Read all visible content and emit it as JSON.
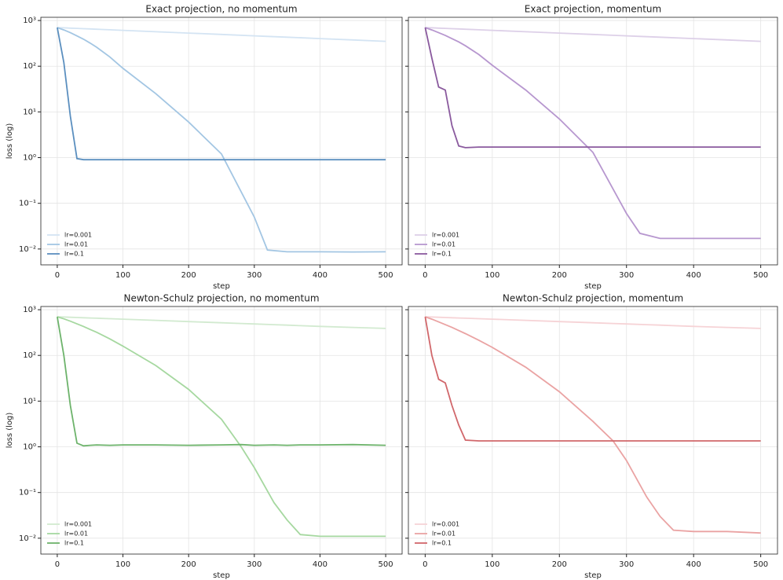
{
  "chart_data": [
    {
      "type": "line",
      "title": "Exact projection, no momentum",
      "xlabel": "step",
      "ylabel": "loss (log)",
      "yscale": "log",
      "grid": true,
      "legend": "lower left",
      "x": [
        0,
        10,
        20,
        30,
        40,
        50,
        60,
        80,
        100,
        150,
        200,
        250,
        300,
        320,
        350,
        400,
        450,
        500
      ],
      "xlim": [
        -25,
        525
      ],
      "xticks": [
        0,
        100,
        200,
        300,
        400,
        500
      ],
      "ylim": [
        0.0045,
        1175
      ],
      "yticks": [
        {
          "value": 0.01,
          "label": "10⁻²"
        },
        {
          "value": 0.1,
          "label": "10⁻¹"
        },
        {
          "value": 1,
          "label": "10⁰"
        },
        {
          "value": 10,
          "label": "10¹"
        },
        {
          "value": 100,
          "label": "10²"
        },
        {
          "value": 1000,
          "label": "10³"
        }
      ],
      "series": [
        {
          "name": "lr=0.001",
          "color": "#d4e4f3",
          "values": [
            700,
            690,
            681,
            672,
            662,
            653,
            644,
            627,
            609,
            568,
            530,
            495,
            462,
            449,
            431,
            402,
            375,
            350
          ]
        },
        {
          "name": "lr=0.01",
          "color": "#a3c6e3",
          "values": [
            700,
            620,
            540,
            460,
            390,
            320,
            260,
            160,
            90,
            25,
            6,
            1.2,
            0.05,
            0.0095,
            0.0087,
            0.0087,
            0.0086,
            0.0087
          ]
        },
        {
          "name": "lr=0.1",
          "color": "#5b8fbf",
          "values": [
            700,
            120,
            8,
            0.95,
            0.9,
            0.9,
            0.9,
            0.9,
            0.9,
            0.9,
            0.9,
            0.9,
            0.9,
            0.9,
            0.9,
            0.9,
            0.9,
            0.9
          ]
        }
      ]
    },
    {
      "type": "line",
      "title": "Exact projection, momentum",
      "xlabel": "step",
      "yscale": "log",
      "grid": true,
      "legend": "lower left",
      "x": [
        0,
        10,
        20,
        30,
        40,
        50,
        60,
        80,
        100,
        150,
        200,
        250,
        300,
        320,
        350,
        400,
        450,
        500
      ],
      "xlim": [
        -25,
        525
      ],
      "xticks": [
        0,
        100,
        200,
        300,
        400,
        500
      ],
      "ylim": [
        0.0045,
        1175
      ],
      "yticks": [
        0.01,
        0.1,
        1,
        10,
        100,
        1000
      ],
      "series": [
        {
          "name": "lr=0.001",
          "color": "#ddd0e8",
          "values": [
            700,
            690,
            681,
            672,
            662,
            653,
            644,
            627,
            609,
            568,
            530,
            495,
            462,
            449,
            431,
            402,
            375,
            350
          ]
        },
        {
          "name": "lr=0.01",
          "color": "#b797cf",
          "values": [
            700,
            620,
            540,
            470,
            400,
            340,
            280,
            180,
            105,
            30,
            7,
            1.3,
            0.06,
            0.022,
            0.017,
            0.017,
            0.017,
            0.017
          ]
        },
        {
          "name": "lr=0.1",
          "color": "#8a5a9e",
          "values": [
            700,
            150,
            35,
            30,
            5,
            1.8,
            1.65,
            1.7,
            1.7,
            1.7,
            1.7,
            1.7,
            1.7,
            1.7,
            1.7,
            1.7,
            1.7,
            1.7
          ]
        }
      ]
    },
    {
      "type": "line",
      "title": "Newton-Schulz projection, no momentum",
      "xlabel": "step",
      "ylabel": "loss (log)",
      "yscale": "log",
      "grid": true,
      "legend": "lower left",
      "x": [
        0,
        10,
        20,
        30,
        40,
        50,
        60,
        80,
        100,
        150,
        200,
        250,
        280,
        300,
        330,
        350,
        370,
        400,
        450,
        500
      ],
      "xlim": [
        -25,
        525
      ],
      "xticks": [
        0,
        100,
        200,
        300,
        400,
        500
      ],
      "ylim": [
        0.0045,
        1175
      ],
      "yticks": [
        {
          "value": 0.01,
          "label": "10⁻²"
        },
        {
          "value": 0.1,
          "label": "10⁻¹"
        },
        {
          "value": 1,
          "label": "10⁰"
        },
        {
          "value": 10,
          "label": "10¹"
        },
        {
          "value": 100,
          "label": "10²"
        },
        {
          "value": 1000,
          "label": "10³"
        }
      ],
      "series": [
        {
          "name": "lr=0.001",
          "color": "#d2ead0",
          "values": [
            700,
            692,
            684,
            676,
            668,
            660,
            652,
            637,
            622,
            585,
            550,
            518,
            499,
            487,
            470,
            459,
            448,
            432,
            410,
            390
          ]
        },
        {
          "name": "lr=0.01",
          "color": "#a6d8a0",
          "values": [
            700,
            630,
            560,
            490,
            430,
            370,
            320,
            230,
            160,
            60,
            18,
            4,
            1,
            0.35,
            0.06,
            0.025,
            0.012,
            0.011,
            0.011,
            0.011
          ]
        },
        {
          "name": "lr=0.1",
          "color": "#6db36b",
          "values": [
            700,
            100,
            8,
            1.2,
            1.05,
            1.08,
            1.1,
            1.08,
            1.1,
            1.1,
            1.08,
            1.1,
            1.12,
            1.08,
            1.1,
            1.08,
            1.1,
            1.1,
            1.12,
            1.08
          ]
        }
      ]
    },
    {
      "type": "line",
      "title": "Newton-Schulz projection, momentum",
      "xlabel": "step",
      "yscale": "log",
      "grid": true,
      "legend": "lower left",
      "x": [
        0,
        10,
        20,
        30,
        40,
        50,
        60,
        80,
        100,
        150,
        200,
        250,
        280,
        300,
        330,
        350,
        370,
        400,
        450,
        500
      ],
      "xlim": [
        -25,
        525
      ],
      "xticks": [
        0,
        100,
        200,
        300,
        400,
        500
      ],
      "ylim": [
        0.0045,
        1175
      ],
      "yticks": [
        0.01,
        0.1,
        1,
        10,
        100,
        1000
      ],
      "series": [
        {
          "name": "lr=0.001",
          "color": "#f6d3d6",
          "values": [
            700,
            692,
            684,
            676,
            668,
            660,
            652,
            637,
            622,
            585,
            550,
            518,
            499,
            487,
            470,
            459,
            448,
            432,
            410,
            390
          ]
        },
        {
          "name": "lr=0.01",
          "color": "#eaa3a3",
          "values": [
            700,
            620,
            540,
            470,
            410,
            350,
            300,
            215,
            150,
            55,
            16,
            3.6,
            1.35,
            0.5,
            0.08,
            0.03,
            0.015,
            0.014,
            0.014,
            0.013
          ]
        },
        {
          "name": "lr=0.1",
          "color": "#d1676b",
          "values": [
            700,
            100,
            30,
            25,
            8,
            3,
            1.4,
            1.35,
            1.35,
            1.35,
            1.35,
            1.35,
            1.35,
            1.35,
            1.35,
            1.35,
            1.35,
            1.35,
            1.35,
            1.35
          ]
        }
      ]
    }
  ]
}
